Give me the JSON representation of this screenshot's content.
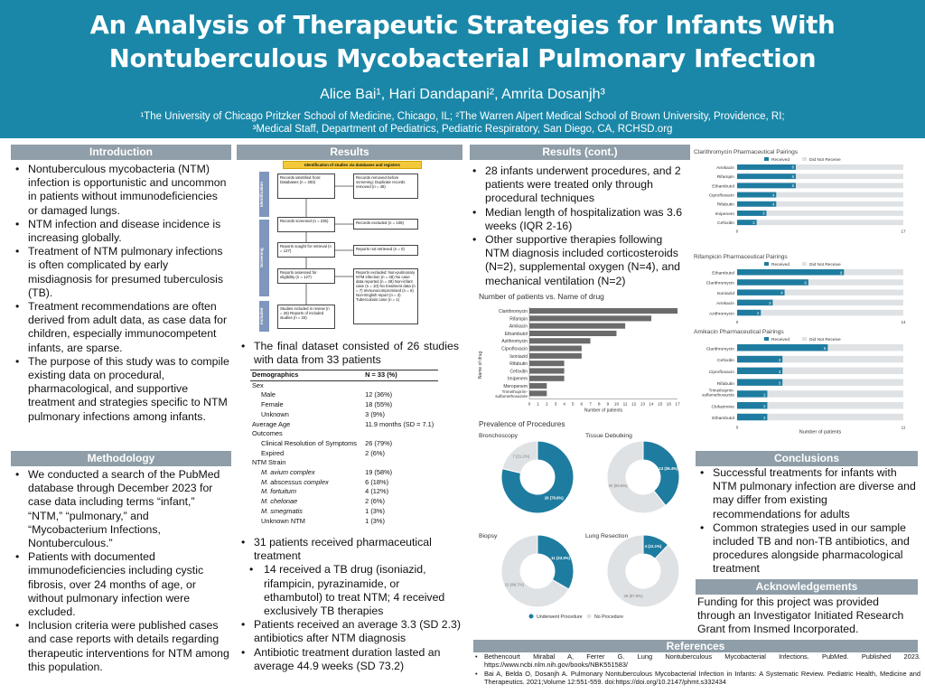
{
  "header": {
    "title_line1": "An Analysis of Therapeutic Strategies for Infants With",
    "title_line2": "Nontuberculous Mycobacterial Pulmonary Infection",
    "authors": "Alice Bai¹, Hari Dandapani², Amrita Dosanjh³",
    "affil_line1": "¹The University of Chicago Pritzker School of Medicine, Chicago, IL; ²The Warren Alpert Medical School of Brown University, Providence, RI;",
    "affil_line2": "³Medical Staff, Department of Pediatrics, Pediatric Respiratory, San Diego, CA, RCHSD.org"
  },
  "sections": {
    "introduction": "Introduction",
    "methodology": "Methodology",
    "results": "Results",
    "results_cont": "Results (cont.)",
    "conclusions": "Conclusions",
    "acknowledgements": "Acknowledgements",
    "references": "References"
  },
  "introduction": [
    "Nontuberculous mycobacteria (NTM) infection is opportunistic and uncommon in patients without immunodeficiencies or damaged lungs.",
    "NTM infection and disease incidence is increasing globally.",
    "Treatment of NTM pulmonary infections is often complicated by early misdiagnosis for presumed tuberculosis (TB).",
    "Treatment recommendations are often derived from adult data, as case data for children, especially immunocompetent infants, are sparse.",
    "The purpose of this study was to compile existing data on procedural, pharmacological, and supportive treatment and strategies specific to NTM pulmonary infections among infants."
  ],
  "methodology": [
    "We conducted a search of the PubMed database through December 2023 for case data including terms “infant,” “NTM,” “pulmonary,” and “Mycobacterium Infections, Nontuberculous.”",
    "Patients with documented immunodeficiencies including cystic fibrosis, over 24 months of age, or without pulmonary infection were excluded.",
    "Inclusion criteria were published cases and case reports with details regarding therapeutic interventions for NTM among this population."
  ],
  "flowchart": {
    "top": "Identification of studies via databases and registers",
    "side_identification": "Identification",
    "side_screening": "Screening",
    "side_included": "Included",
    "records_identified": "Records identified from: Databases (n = 283)",
    "records_removed": "Records removed before screening: Duplicate records removed (n = 48)",
    "records_screened": "Records screened (n = 235)",
    "records_excluded": "Records excluded (n = 108)",
    "reports_sought": "Reports sought for retrieval (n = 127)",
    "reports_not_retrieved": "Reports not retrieved (n = 0)",
    "reports_assessed": "Reports assessed for eligibility (n = 127)",
    "reports_excluded": "Reports excluded: Non-pulmonary NTM infection (n = 48) No case data reported (n = 28) Non-infant case (n = 10) No treatment data (n = 7) Immunocompromised (n = 6) Non-English report (n = 3) Tuberculosis case (n = 1)",
    "studies_included": "Studies included in review (n = 26) Reports of included studies (n = 33)"
  },
  "results": {
    "final_dataset": "The final dataset consisted of 26 studies with data from 33 patients",
    "pharm_1": "31 patients received pharmaceutical treatment",
    "pharm_sub": "14 received a TB drug (isoniazid, rifampicin, pyrazinamide, or ethambutol) to treat NTM; 4 received exclusively TB therapies",
    "pharm_2": "Patients received an average 3.3 (SD 2.3) antibiotics after NTM diagnosis",
    "pharm_3": "Antibiotic treatment duration lasted an average 44.9 weeks (SD 73.2)"
  },
  "demographics": {
    "col1": "Demographics",
    "col2": "N = 33 (%)",
    "rows": [
      {
        "label": "Sex",
        "value": "",
        "indent": 0,
        "italic": false
      },
      {
        "label": "Male",
        "value": "12 (36%)",
        "indent": 1,
        "italic": false
      },
      {
        "label": "Female",
        "value": "18 (55%)",
        "indent": 1,
        "italic": false
      },
      {
        "label": "Unknown",
        "value": "3 (9%)",
        "indent": 1,
        "italic": false
      },
      {
        "label": "Average Age",
        "value": "11.9 months (SD = 7.1)",
        "indent": 0,
        "italic": false
      },
      {
        "label": "Outcomes",
        "value": "",
        "indent": 0,
        "italic": false
      },
      {
        "label": "Clinical Resolution of Symptoms",
        "value": "26 (79%)",
        "indent": 1,
        "italic": false
      },
      {
        "label": "Expired",
        "value": "2 (6%)",
        "indent": 1,
        "italic": false
      },
      {
        "label": "NTM Strain",
        "value": "",
        "indent": 0,
        "italic": false
      },
      {
        "label": "M. avium complex",
        "value": "19 (58%)",
        "indent": 1,
        "italic": true
      },
      {
        "label": "M. abscessus complex",
        "value": "6 (18%)",
        "indent": 1,
        "italic": true
      },
      {
        "label": "M. fortuitum",
        "value": "4 (12%)",
        "indent": 1,
        "italic": true
      },
      {
        "label": "M. chelonae",
        "value": "2 (6%)",
        "indent": 1,
        "italic": true
      },
      {
        "label": "M. smegmatis",
        "value": "1 (3%)",
        "indent": 1,
        "italic": true
      },
      {
        "label": "Unknown NTM",
        "value": "1 (3%)",
        "indent": 1,
        "italic": false
      }
    ]
  },
  "results_cont": [
    "28 infants underwent procedures, and 2 patients were treated only through procedural techniques",
    "Median length of hospitalization was 3.6 weeks (IQR 2-16)",
    "Other supportive therapies following NTM diagnosis included corticosteroids (N=2), supplemental oxygen (N=4), and mechanical ventilation (N=2)"
  ],
  "colors": {
    "header_bg": "#1a87a8",
    "section_header": "#8f9ea8",
    "bar_gray": "#6b6b6b",
    "received": "#1e7ca0",
    "did_not_receive": "#dfe2e4"
  },
  "chart_data": [
    {
      "type": "bar",
      "orientation": "horizontal",
      "title": "Number of patients vs. Name of drug",
      "xlabel": "Number of patients",
      "ylabel": "Name of drug",
      "xlim": [
        0,
        17
      ],
      "xticks": [
        "0",
        "1",
        "2",
        "3",
        "4",
        "5",
        "6",
        "7",
        "8",
        "9",
        "10",
        "11",
        "12",
        "13",
        "14",
        "15",
        "16",
        "17"
      ],
      "categories": [
        "Clarithromycin",
        "Rifampin",
        "Amikacin",
        "Ethambutol",
        "Azithromycin",
        "Ciprofloxacin",
        "Isoniazid",
        "Rifabutin",
        "Cefoxitin",
        "Imipenem",
        "Meropenem",
        "Trimethoprim-sulfamethoxazole"
      ],
      "values": [
        17,
        14,
        11,
        10,
        7,
        6,
        6,
        4,
        4,
        4,
        2,
        2
      ]
    },
    {
      "type": "bar",
      "orientation": "horizontal-stacked",
      "title": "Clarithromycin Pharmaceutical Pairings",
      "legend": [
        "Received",
        "Did Not Receive"
      ],
      "total": 17,
      "xticks": [
        "0",
        "17"
      ],
      "categories": [
        "Amikacin",
        "Rifampin",
        "Ethambutol",
        "Ciprofloxacin",
        "Rifabutin",
        "Imipenem",
        "Cefoxitin"
      ],
      "values": [
        6,
        6,
        6,
        4,
        4,
        3,
        2
      ]
    },
    {
      "type": "bar",
      "orientation": "horizontal-stacked",
      "title": "Rifampicin Pharmaceutical Pairings",
      "legend": [
        "Received",
        "Did Not Receive"
      ],
      "total": 14,
      "xticks": [
        "0",
        "14"
      ],
      "categories": [
        "Ethambutol",
        "Clarithromycin",
        "Isoniazid",
        "Amikacin",
        "Azithromycin"
      ],
      "values": [
        9,
        6,
        4,
        3,
        2
      ]
    },
    {
      "type": "bar",
      "orientation": "horizontal-stacked",
      "title": "Amikacin Pharmaceutical Pairings",
      "legend": [
        "Received",
        "Did Not Receive"
      ],
      "total": 11,
      "xlabel": "Number of patients",
      "xticks": [
        "0",
        "11"
      ],
      "categories": [
        "Clarithromycin",
        "Cefoxitin",
        "Ciprofloxacin",
        "Rifabutin",
        "Trimethoprim-sulfamethoxazole",
        "Clofazimine",
        "Ethambutol"
      ],
      "values": [
        6,
        3,
        3,
        3,
        2,
        2,
        2
      ]
    },
    {
      "type": "pie",
      "title": "Prevalence of Procedures",
      "legend": [
        "Underwent Procedure",
        "No Procedure"
      ],
      "charts": [
        {
          "name": "Bronchoscopy",
          "values": [
            26,
            7
          ],
          "labels": [
            "26 (78.8%)",
            "7 (21.2%)"
          ]
        },
        {
          "name": "Tissue Debulking",
          "values": [
            13,
            20
          ],
          "labels": [
            "13 (39.4%)",
            "20 (60.6%)"
          ]
        },
        {
          "name": "Biopsy",
          "values": [
            11,
            22
          ],
          "labels": [
            "11 (33.3%)",
            "22 (66.7%)"
          ]
        },
        {
          "name": "Lung Resection",
          "values": [
            4,
            29
          ],
          "labels": [
            "4 (12.1%)",
            "29 (87.9%)"
          ]
        }
      ]
    }
  ],
  "conclusions": [
    "Successful treatments for infants with NTM pulmonary infection are diverse and may differ from existing recommendations for adults",
    "Common strategies used in our sample included TB and non-TB antibiotics, and procedures alongside pharmacological treatment"
  ],
  "acknowledgements": "Funding for this project was provided through an Investigator Initiated Research Grant from Insmed Incorporated.",
  "references": [
    "Bethencourt Mirabal A, Ferrer G. Lung Nontuberculous Mycobacterial Infections. PubMed. Published 2023. https://www.ncbi.nlm.nih.gov/books/NBK551583/",
    "Bai A, Belda O, Dosanjh A. Pulmonary Nontuberculous Mycobacterial Infection in Infants: A Systematic Review. Pediatric Health, Medicine and Therapeutics. 2021;Volume 12:551-559. doi:https://doi.org/10.2147/phmt.s332434"
  ]
}
